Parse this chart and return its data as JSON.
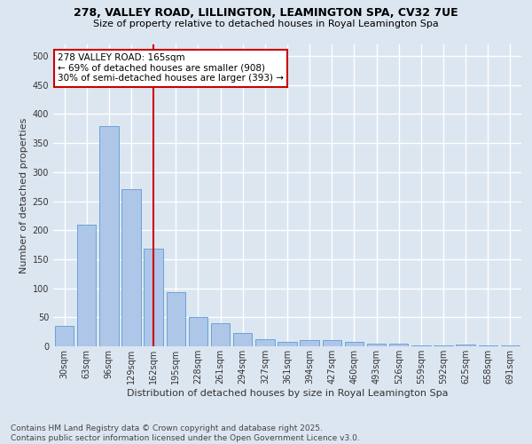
{
  "title1": "278, VALLEY ROAD, LILLINGTON, LEAMINGTON SPA, CV32 7UE",
  "title2": "Size of property relative to detached houses in Royal Leamington Spa",
  "xlabel": "Distribution of detached houses by size in Royal Leamington Spa",
  "ylabel": "Number of detached properties",
  "categories": [
    "30sqm",
    "63sqm",
    "96sqm",
    "129sqm",
    "162sqm",
    "195sqm",
    "228sqm",
    "261sqm",
    "294sqm",
    "327sqm",
    "361sqm",
    "394sqm",
    "427sqm",
    "460sqm",
    "493sqm",
    "526sqm",
    "559sqm",
    "592sqm",
    "625sqm",
    "658sqm",
    "691sqm"
  ],
  "values": [
    35,
    210,
    380,
    270,
    168,
    93,
    50,
    40,
    23,
    12,
    8,
    11,
    11,
    8,
    4,
    4,
    2,
    2,
    3,
    2,
    2
  ],
  "bar_color": "#aec6e8",
  "bar_edge_color": "#5b9bd5",
  "highlight_line_index": 4,
  "highlight_line_color": "#cc0000",
  "annotation_text": "278 VALLEY ROAD: 165sqm\n← 69% of detached houses are smaller (908)\n30% of semi-detached houses are larger (393) →",
  "annotation_box_color": "#ffffff",
  "annotation_box_edge": "#cc0000",
  "bg_color": "#dce6f1",
  "plot_bg_color": "#dce6f1",
  "grid_color": "#ffffff",
  "footer_text": "Contains HM Land Registry data © Crown copyright and database right 2025.\nContains public sector information licensed under the Open Government Licence v3.0.",
  "ylim": [
    0,
    520
  ],
  "yticks": [
    0,
    50,
    100,
    150,
    200,
    250,
    300,
    350,
    400,
    450,
    500
  ],
  "title1_fontsize": 9,
  "title2_fontsize": 8,
  "xlabel_fontsize": 8,
  "ylabel_fontsize": 8,
  "tick_fontsize": 7,
  "annotation_fontsize": 7.5,
  "footer_fontsize": 6.5
}
